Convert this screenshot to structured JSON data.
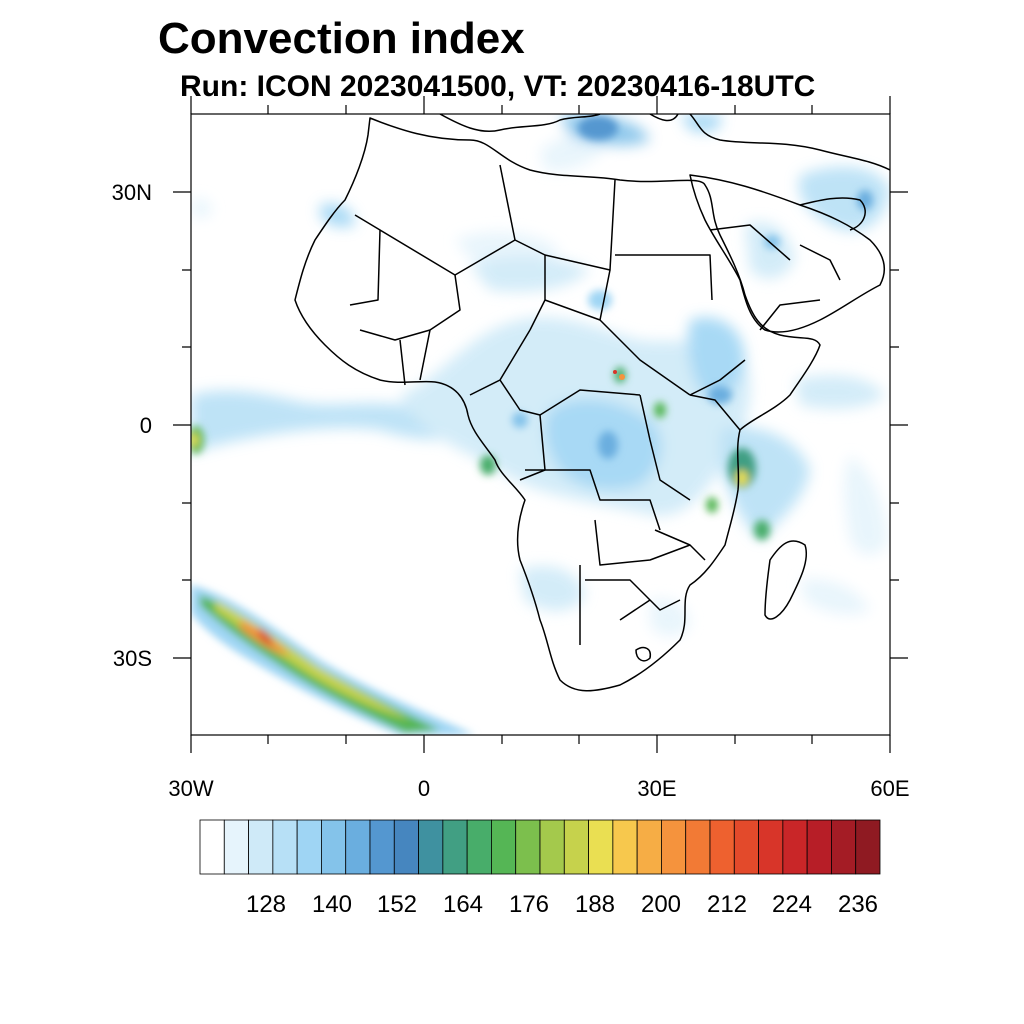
{
  "title": "Convection index",
  "subtitle": "Run: ICON 2023041500,  VT: 20230416-18UTC",
  "axes": {
    "lon_labels": [
      "30W",
      "0",
      "30E",
      "60E"
    ],
    "lat_labels": [
      "30N",
      "0",
      "30S"
    ]
  },
  "colorbar": {
    "labels": [
      "128",
      "140",
      "152",
      "164",
      "176",
      "188",
      "200",
      "212",
      "224",
      "236"
    ],
    "colors": [
      "#ffffff",
      "#e6f4fc",
      "#cfeaf8",
      "#b7e0f6",
      "#9fd5f4",
      "#84c3ea",
      "#6aaedf",
      "#5497d0",
      "#4686bf",
      "#3f91a0",
      "#419f83",
      "#48ad6a",
      "#55b655",
      "#7cbf4d",
      "#a4c94c",
      "#c6d24c",
      "#eadf52",
      "#f7c84d",
      "#f6ad45",
      "#f5933d",
      "#f27a35",
      "#ee612f",
      "#e34a2b",
      "#d83529",
      "#c92628",
      "#b71e27",
      "#a41c25",
      "#8f1a22"
    ]
  },
  "colors": {
    "coast": "#000000",
    "frame": "#000000"
  }
}
